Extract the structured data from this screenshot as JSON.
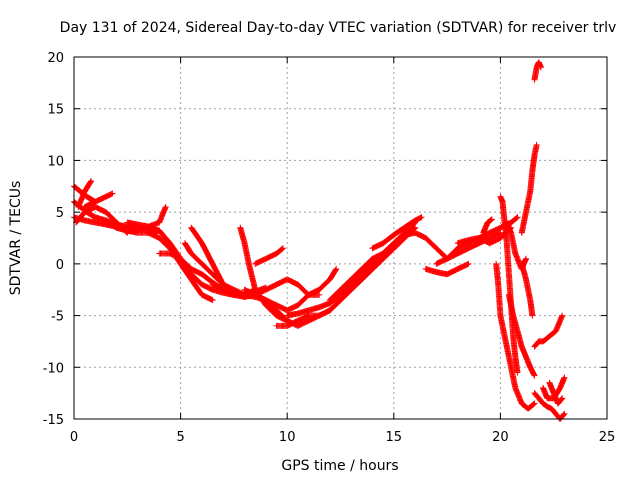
{
  "chart_data": {
    "type": "scatter",
    "title": "Day 131 of 2024, Sidereal Day-to-day VTEC variation (SDTVAR) for receiver trlv",
    "xlabel": "GPS time / hours",
    "ylabel": "SDTVAR / TECUs",
    "xlim": [
      0,
      25
    ],
    "ylim": [
      -15,
      20
    ],
    "xticks": [
      "0",
      "5",
      "10",
      "15",
      "20",
      "25"
    ],
    "yticks": [
      "-15",
      "-10",
      "-5",
      "0",
      "5",
      "10",
      "15",
      "20"
    ],
    "grid": true,
    "marker": "+",
    "color": "#ff0000",
    "series": [
      {
        "x": [
          0.0,
          0.5,
          1.0,
          1.5,
          2.0,
          2.5,
          3.0,
          3.5,
          4.0
        ],
        "y": [
          4.5,
          4.2,
          4.0,
          3.8,
          3.6,
          3.5,
          3.4,
          3.3,
          3.2
        ]
      },
      {
        "x": [
          0.0,
          0.3,
          0.6,
          1.0,
          1.5,
          2.0,
          2.5,
          3.0
        ],
        "y": [
          6.0,
          5.5,
          5.0,
          4.5,
          4.2,
          3.8,
          3.6,
          3.4
        ]
      },
      {
        "x": [
          0.0,
          0.3,
          0.6,
          1.0
        ],
        "y": [
          7.5,
          7.0,
          6.5,
          6.0
        ]
      },
      {
        "x": [
          0.1,
          0.5,
          1.0,
          1.5,
          2.0,
          2.5
        ],
        "y": [
          4.0,
          5.0,
          5.5,
          5.0,
          4.0,
          3.0
        ]
      },
      {
        "x": [
          0.2,
          0.5,
          0.8
        ],
        "y": [
          5.5,
          7.0,
          8.0
        ]
      },
      {
        "x": [
          0.5,
          1.0,
          1.5,
          1.8
        ],
        "y": [
          5.5,
          6.0,
          6.5,
          6.8
        ]
      },
      {
        "x": [
          1.5,
          2.0,
          2.5,
          3.0,
          3.5,
          4.0
        ],
        "y": [
          4.0,
          3.5,
          3.2,
          3.0,
          3.0,
          3.2
        ]
      },
      {
        "x": [
          2.0,
          2.5,
          3.0,
          3.5,
          4.0,
          4.3
        ],
        "y": [
          3.5,
          3.2,
          3.3,
          3.6,
          4.0,
          5.5
        ]
      },
      {
        "x": [
          2.5,
          3.0,
          3.5,
          4.0,
          4.5,
          5.0,
          5.5,
          6.0,
          6.5,
          7.0,
          7.5,
          8.0,
          8.5,
          9.0
        ],
        "y": [
          4.0,
          3.8,
          3.6,
          3.2,
          2.0,
          0.5,
          -1.0,
          -2.0,
          -2.5,
          -2.8,
          -3.0,
          -3.0,
          -2.7,
          -2.3
        ]
      },
      {
        "x": [
          3.5,
          4.0,
          4.5,
          5.0,
          5.5,
          6.0,
          6.5
        ],
        "y": [
          3.0,
          2.5,
          1.5,
          0.0,
          -1.5,
          -3.0,
          -3.5
        ]
      },
      {
        "x": [
          4.0,
          4.5,
          5.0,
          5.5,
          6.0,
          6.5,
          7.0,
          7.5,
          8.0,
          8.5
        ],
        "y": [
          1.0,
          1.0,
          0.5,
          -0.5,
          -1.0,
          -1.8,
          -2.5,
          -3.0,
          -3.0,
          -2.5
        ]
      },
      {
        "x": [
          5.2,
          5.5,
          6.0,
          6.5,
          7.0,
          7.5,
          8.0,
          8.5,
          9.0,
          9.5,
          10.0,
          10.5,
          11.0,
          11.5,
          12.0,
          12.3
        ],
        "y": [
          2.0,
          1.0,
          0.0,
          -1.0,
          -2.0,
          -2.5,
          -3.0,
          -3.2,
          -3.5,
          -4.0,
          -4.5,
          -4.0,
          -3.0,
          -2.5,
          -1.5,
          -0.5
        ]
      },
      {
        "x": [
          5.5,
          6.0,
          6.5,
          7.0
        ],
        "y": [
          3.5,
          2.0,
          0.0,
          -2.0
        ]
      },
      {
        "x": [
          6.5,
          7.0,
          7.5,
          8.0,
          8.5,
          9.0,
          9.5,
          10.0,
          10.5,
          11.0,
          11.5
        ],
        "y": [
          -2.0,
          -2.5,
          -3.0,
          -3.2,
          -3.0,
          -2.5,
          -2.0,
          -1.5,
          -2.0,
          -3.0,
          -3.0
        ]
      },
      {
        "x": [
          7.8,
          8.0,
          8.2,
          8.5,
          9.0,
          9.5,
          10.0
        ],
        "y": [
          3.5,
          2.0,
          0.0,
          -2.5,
          -4.0,
          -5.0,
          -5.5
        ]
      },
      {
        "x": [
          8.5,
          9.0,
          9.5,
          9.8
        ],
        "y": [
          0.0,
          0.5,
          1.0,
          1.5
        ]
      },
      {
        "x": [
          8.0,
          8.5,
          9.0,
          9.5,
          10.0,
          10.5,
          11.0,
          11.5,
          12.0,
          12.5,
          13.0,
          13.5,
          14.0,
          14.5,
          15.0,
          15.5,
          16.0
        ],
        "y": [
          -2.5,
          -3.0,
          -3.5,
          -4.5,
          -5.5,
          -6.0,
          -5.5,
          -5.0,
          -4.5,
          -3.5,
          -2.5,
          -1.5,
          -0.5,
          0.5,
          1.5,
          2.5,
          3.5
        ]
      },
      {
        "x": [
          9.5,
          10.0,
          10.5,
          11.0,
          11.5,
          12.0,
          12.5,
          13.0,
          13.5,
          14.0,
          14.5,
          15.0,
          15.5,
          16.0
        ],
        "y": [
          -6.0,
          -6.0,
          -5.5,
          -5.0,
          -5.0,
          -4.5,
          -3.5,
          -2.5,
          -1.5,
          -0.5,
          0.5,
          1.5,
          2.5,
          3.5
        ]
      },
      {
        "x": [
          10.0,
          10.5,
          11.0,
          11.5,
          12.0,
          12.5,
          13.0,
          13.5,
          14.0,
          14.5,
          15.0,
          15.5,
          16.0
        ],
        "y": [
          -5.0,
          -4.8,
          -4.5,
          -4.2,
          -3.8,
          -3.0,
          -2.0,
          -1.0,
          0.0,
          1.0,
          2.0,
          3.0,
          4.0
        ]
      },
      {
        "x": [
          12.0,
          12.5,
          13.0,
          13.5,
          14.0,
          14.5,
          15.0,
          15.5,
          16.0,
          16.5,
          17.0,
          17.5,
          18.0,
          18.5,
          19.0,
          19.5,
          20.0
        ],
        "y": [
          -3.5,
          -2.5,
          -1.5,
          -0.5,
          0.5,
          1.0,
          2.0,
          2.8,
          3.0,
          2.5,
          1.5,
          0.5,
          1.0,
          1.5,
          2.0,
          2.5,
          3.0
        ]
      },
      {
        "x": [
          14.0,
          14.5,
          15.0,
          15.5,
          16.0,
          16.3
        ],
        "y": [
          1.5,
          2.0,
          2.8,
          3.5,
          4.2,
          4.5
        ]
      },
      {
        "x": [
          16.5,
          17.0,
          17.5,
          18.0,
          18.5
        ],
        "y": [
          -0.5,
          -0.8,
          -1.0,
          -0.5,
          0.0
        ]
      },
      {
        "x": [
          17.0,
          17.5,
          18.0,
          18.5,
          19.0,
          19.5,
          20.0,
          20.5
        ],
        "y": [
          0.0,
          0.5,
          1.5,
          2.0,
          2.5,
          2.0,
          2.5,
          3.5
        ]
      },
      {
        "x": [
          18.0,
          18.5,
          19.0,
          19.5,
          20.0,
          20.5,
          20.8
        ],
        "y": [
          2.0,
          2.3,
          2.5,
          3.0,
          3.5,
          4.0,
          4.5
        ]
      },
      {
        "x": [
          19.2,
          19.4,
          19.6
        ],
        "y": [
          3.0,
          4.0,
          4.3
        ]
      },
      {
        "x": [
          19.8,
          19.9,
          20.0,
          20.1,
          20.2,
          20.3,
          20.4,
          20.5,
          20.7,
          21.0,
          21.3,
          21.6
        ],
        "y": [
          0.0,
          -2.0,
          -5.0,
          -6.0,
          -7.0,
          -8.0,
          -9.0,
          -10.0,
          -12.0,
          -13.5,
          -14.0,
          -13.5
        ]
      },
      {
        "x": [
          20.0,
          20.1,
          20.2,
          20.3,
          20.4,
          20.5,
          20.6,
          20.7,
          20.8
        ],
        "y": [
          6.5,
          6.0,
          4.0,
          2.0,
          -1.0,
          -4.0,
          -7.0,
          -9.0,
          -10.5
        ]
      },
      {
        "x": [
          20.4,
          20.6,
          20.8,
          21.0,
          21.2,
          21.4,
          21.6
        ],
        "y": [
          -3.0,
          -5.0,
          -6.5,
          -8.0,
          -9.0,
          -10.0,
          -10.8
        ]
      },
      {
        "x": [
          20.3,
          20.5,
          20.7,
          21.0,
          21.2
        ],
        "y": [
          4.0,
          3.0,
          1.0,
          -0.5,
          0.5
        ]
      },
      {
        "x": [
          21.0,
          21.2,
          21.4,
          21.5,
          21.6,
          21.7
        ],
        "y": [
          3.0,
          5.0,
          7.0,
          9.0,
          10.5,
          11.5
        ]
      },
      {
        "x": [
          21.0,
          21.2,
          21.4,
          21.5
        ],
        "y": [
          0.0,
          -1.5,
          -3.5,
          -5.0
        ]
      },
      {
        "x": [
          21.6,
          21.8,
          22.0,
          22.2,
          22.4,
          22.6,
          22.8,
          23.0
        ],
        "y": [
          -12.5,
          -13.0,
          -13.5,
          -13.8,
          -14.0,
          -14.5,
          -15.0,
          -14.5
        ]
      },
      {
        "x": [
          21.6,
          21.8,
          22.0,
          22.3,
          22.6,
          22.9
        ],
        "y": [
          -8.0,
          -7.5,
          -7.5,
          -7.0,
          -6.5,
          -5.0
        ]
      },
      {
        "x": [
          22.0,
          22.2,
          22.5,
          22.8,
          23.0
        ],
        "y": [
          -12.0,
          -13.0,
          -13.0,
          -12.0,
          -11.0
        ]
      },
      {
        "x": [
          22.3,
          22.5,
          22.7,
          22.9
        ],
        "y": [
          -11.5,
          -12.5,
          -13.5,
          -13.0
        ]
      },
      {
        "x": [
          21.6,
          21.7,
          21.8,
          21.9
        ],
        "y": [
          17.8,
          19.0,
          19.5,
          19.0
        ]
      }
    ]
  }
}
